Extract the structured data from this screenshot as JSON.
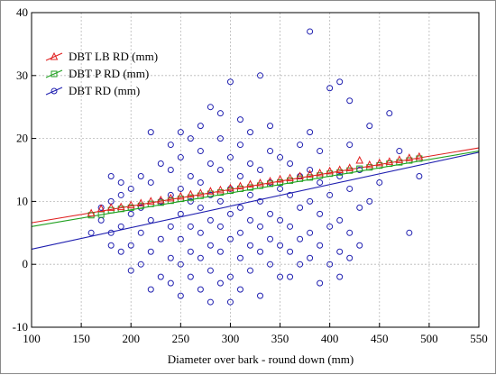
{
  "chart_data": {
    "type": "scatter",
    "xlabel": "Diameter over bark - round down (mm)",
    "ylabel": "",
    "xlim": [
      100,
      550
    ],
    "ylim": [
      -10,
      40
    ],
    "x_ticks": [
      "100",
      "150",
      "200",
      "250",
      "300",
      "350",
      "400",
      "450",
      "500",
      "550"
    ],
    "y_ticks": [
      "-10",
      "0",
      "10",
      "20",
      "30",
      "40"
    ],
    "grid": true,
    "legend_position": "top-left",
    "series": [
      {
        "name": "DBT LB RD (mm)",
        "color": "#e02020",
        "marker": "triangle",
        "fit": [
          [
            100,
            6.6
          ],
          [
            550,
            18.5
          ]
        ],
        "points": [
          [
            160,
            8.1
          ],
          [
            170,
            8.8
          ],
          [
            180,
            9.0
          ],
          [
            190,
            9.1
          ],
          [
            200,
            9.4
          ],
          [
            210,
            9.7
          ],
          [
            220,
            10.0
          ],
          [
            230,
            10.2
          ],
          [
            240,
            10.5
          ],
          [
            250,
            10.8
          ],
          [
            260,
            11.1
          ],
          [
            270,
            11.3
          ],
          [
            280,
            11.6
          ],
          [
            290,
            11.8
          ],
          [
            300,
            12.1
          ],
          [
            310,
            12.4
          ],
          [
            320,
            12.7
          ],
          [
            330,
            12.9
          ],
          [
            340,
            13.2
          ],
          [
            350,
            13.5
          ],
          [
            360,
            13.7
          ],
          [
            370,
            14.0
          ],
          [
            380,
            14.3
          ],
          [
            390,
            14.5
          ],
          [
            400,
            14.8
          ],
          [
            410,
            15.0
          ],
          [
            420,
            15.3
          ],
          [
            430,
            16.5
          ],
          [
            440,
            15.8
          ],
          [
            450,
            16.1
          ],
          [
            460,
            16.3
          ],
          [
            470,
            16.6
          ],
          [
            480,
            16.9
          ],
          [
            490,
            17.1
          ]
        ]
      },
      {
        "name": "DBT P RD (mm)",
        "color": "#20a020",
        "marker": "square",
        "fit": [
          [
            100,
            6.0
          ],
          [
            550,
            18.0
          ]
        ],
        "points": [
          [
            160,
            7.8
          ],
          [
            170,
            7.9
          ],
          [
            180,
            8.6
          ],
          [
            190,
            8.8
          ],
          [
            200,
            9.0
          ],
          [
            210,
            9.3
          ],
          [
            220,
            9.6
          ],
          [
            230,
            9.8
          ],
          [
            240,
            10.1
          ],
          [
            250,
            10.4
          ],
          [
            260,
            10.6
          ],
          [
            270,
            10.9
          ],
          [
            280,
            11.2
          ],
          [
            290,
            11.4
          ],
          [
            300,
            11.7
          ],
          [
            310,
            12.0
          ],
          [
            320,
            12.2
          ],
          [
            330,
            12.5
          ],
          [
            340,
            12.8
          ],
          [
            350,
            13.0
          ],
          [
            360,
            13.3
          ],
          [
            370,
            13.6
          ],
          [
            380,
            13.8
          ],
          [
            390,
            14.1
          ],
          [
            400,
            14.4
          ],
          [
            410,
            14.6
          ],
          [
            420,
            14.9
          ],
          [
            430,
            15.2
          ],
          [
            440,
            15.4
          ],
          [
            450,
            15.7
          ],
          [
            460,
            16.0
          ],
          [
            470,
            16.2
          ],
          [
            480,
            16.5
          ],
          [
            490,
            16.8
          ]
        ]
      },
      {
        "name": "DBT RD (mm)",
        "color": "#2020b0",
        "marker": "circle",
        "fit": [
          [
            100,
            2.4
          ],
          [
            550,
            17.8
          ]
        ],
        "points": [
          [
            160,
            5
          ],
          [
            170,
            7
          ],
          [
            170,
            9
          ],
          [
            180,
            3
          ],
          [
            180,
            5
          ],
          [
            180,
            14
          ],
          [
            180,
            10
          ],
          [
            190,
            2
          ],
          [
            190,
            6
          ],
          [
            190,
            11
          ],
          [
            190,
            13
          ],
          [
            200,
            -1
          ],
          [
            200,
            3
          ],
          [
            200,
            8
          ],
          [
            200,
            12
          ],
          [
            210,
            0
          ],
          [
            210,
            5
          ],
          [
            210,
            9
          ],
          [
            210,
            14
          ],
          [
            220,
            -4
          ],
          [
            220,
            2
          ],
          [
            220,
            7
          ],
          [
            220,
            13
          ],
          [
            220,
            21
          ],
          [
            230,
            -2
          ],
          [
            230,
            4
          ],
          [
            230,
            10
          ],
          [
            230,
            16
          ],
          [
            240,
            -3
          ],
          [
            240,
            1
          ],
          [
            240,
            6
          ],
          [
            240,
            11
          ],
          [
            240,
            15
          ],
          [
            240,
            19
          ],
          [
            250,
            -5
          ],
          [
            250,
            0
          ],
          [
            250,
            4
          ],
          [
            250,
            8
          ],
          [
            250,
            12
          ],
          [
            250,
            17
          ],
          [
            250,
            21
          ],
          [
            260,
            -2
          ],
          [
            260,
            2
          ],
          [
            260,
            6
          ],
          [
            260,
            10
          ],
          [
            260,
            14
          ],
          [
            260,
            20
          ],
          [
            270,
            -4
          ],
          [
            270,
            1
          ],
          [
            270,
            5
          ],
          [
            270,
            9
          ],
          [
            270,
            13
          ],
          [
            270,
            18
          ],
          [
            270,
            22
          ],
          [
            280,
            -6
          ],
          [
            280,
            -1
          ],
          [
            280,
            3
          ],
          [
            280,
            7
          ],
          [
            280,
            11
          ],
          [
            280,
            16
          ],
          [
            280,
            25
          ],
          [
            290,
            -3
          ],
          [
            290,
            2
          ],
          [
            290,
            6
          ],
          [
            290,
            10
          ],
          [
            290,
            15
          ],
          [
            290,
            20
          ],
          [
            290,
            24
          ],
          [
            300,
            -6
          ],
          [
            300,
            -2
          ],
          [
            300,
            4
          ],
          [
            300,
            8
          ],
          [
            300,
            12
          ],
          [
            300,
            17
          ],
          [
            300,
            29
          ],
          [
            310,
            -4
          ],
          [
            310,
            1
          ],
          [
            310,
            5
          ],
          [
            310,
            9
          ],
          [
            310,
            14
          ],
          [
            310,
            19
          ],
          [
            310,
            23
          ],
          [
            320,
            -1
          ],
          [
            320,
            3
          ],
          [
            320,
            7
          ],
          [
            320,
            11
          ],
          [
            320,
            16
          ],
          [
            320,
            21
          ],
          [
            330,
            -5
          ],
          [
            330,
            2
          ],
          [
            330,
            6
          ],
          [
            330,
            10
          ],
          [
            330,
            15
          ],
          [
            330,
            30
          ],
          [
            340,
            0
          ],
          [
            340,
            4
          ],
          [
            340,
            8
          ],
          [
            340,
            13
          ],
          [
            340,
            18
          ],
          [
            340,
            22
          ],
          [
            350,
            -2
          ],
          [
            350,
            3
          ],
          [
            350,
            7
          ],
          [
            350,
            12
          ],
          [
            350,
            17
          ],
          [
            360,
            -2
          ],
          [
            360,
            2
          ],
          [
            360,
            6
          ],
          [
            360,
            11
          ],
          [
            360,
            16
          ],
          [
            370,
            0
          ],
          [
            370,
            4
          ],
          [
            370,
            9
          ],
          [
            370,
            14
          ],
          [
            370,
            19
          ],
          [
            380,
            1
          ],
          [
            380,
            5
          ],
          [
            380,
            10
          ],
          [
            380,
            15
          ],
          [
            380,
            21
          ],
          [
            380,
            37
          ],
          [
            390,
            -3
          ],
          [
            390,
            3
          ],
          [
            390,
            8
          ],
          [
            390,
            13
          ],
          [
            390,
            18
          ],
          [
            400,
            0
          ],
          [
            400,
            6
          ],
          [
            400,
            11
          ],
          [
            400,
            28
          ],
          [
            410,
            -2
          ],
          [
            410,
            2
          ],
          [
            410,
            7
          ],
          [
            410,
            14
          ],
          [
            410,
            29
          ],
          [
            420,
            1
          ],
          [
            420,
            5
          ],
          [
            420,
            12
          ],
          [
            420,
            19
          ],
          [
            420,
            26
          ],
          [
            430,
            3
          ],
          [
            430,
            9
          ],
          [
            430,
            15
          ],
          [
            440,
            10
          ],
          [
            440,
            22
          ],
          [
            450,
            13
          ],
          [
            460,
            24
          ],
          [
            470,
            18
          ],
          [
            480,
            5
          ],
          [
            490,
            14
          ]
        ]
      }
    ]
  }
}
